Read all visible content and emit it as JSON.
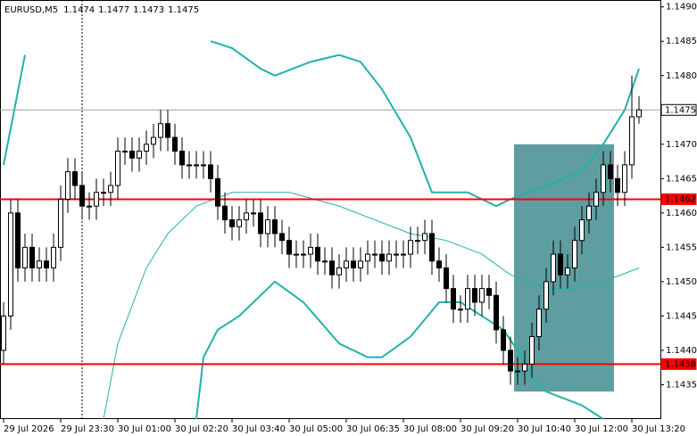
{
  "chart_data": {
    "type": "candlestick",
    "symbol": "EURUSD,M5",
    "open": [
      1.144,
      1.1445,
      1.146,
      1.1452,
      1.1455,
      1.1452,
      1.1453,
      1.1452,
      1.1455,
      1.1462,
      1.1466,
      1.1464,
      1.1461,
      1.1461,
      1.1463,
      1.1463,
      1.1464,
      1.1469,
      1.1469,
      1.1468,
      1.1469,
      1.147,
      1.1471,
      1.1473,
      1.1471,
      1.1469,
      1.1467,
      1.1467,
      1.1467,
      1.1467,
      1.1465,
      1.1461,
      1.1459,
      1.1458,
      1.1459,
      1.146,
      1.146,
      1.1457,
      1.1459,
      1.1457,
      1.1456,
      1.1454,
      1.1454,
      1.1454,
      1.1455,
      1.1453,
      1.1453,
      1.1451,
      1.1452,
      1.1453,
      1.1452,
      1.1453,
      1.1454,
      1.1454,
      1.1453,
      1.1454,
      1.1454,
      1.1454,
      1.1456,
      1.1456,
      1.1457,
      1.1453,
      1.1452,
      1.1449,
      1.1446,
      1.1446,
      1.1449,
      1.1447,
      1.1449,
      1.1448,
      1.1443,
      1.144,
      1.1437,
      1.1437,
      1.1438,
      1.1442,
      1.1446,
      1.145,
      1.1454,
      1.1451,
      1.1452,
      1.1456,
      1.1459,
      1.1461,
      1.1463,
      1.1467,
      1.1465,
      1.1463,
      1.1467,
      1.1474
    ],
    "high": [
      1.1447,
      1.1462,
      1.1462,
      1.1457,
      1.1457,
      1.1455,
      1.1455,
      1.1457,
      1.1464,
      1.1468,
      1.1468,
      1.1466,
      1.1463,
      1.1465,
      1.1465,
      1.1466,
      1.1471,
      1.1471,
      1.1471,
      1.1471,
      1.1472,
      1.1473,
      1.1475,
      1.1475,
      1.1473,
      1.1471,
      1.1469,
      1.1469,
      1.1469,
      1.1469,
      1.1467,
      1.1463,
      1.1461,
      1.1461,
      1.1462,
      1.1462,
      1.1462,
      1.1461,
      1.1461,
      1.1459,
      1.1458,
      1.1456,
      1.1456,
      1.1457,
      1.1457,
      1.1455,
      1.1455,
      1.1454,
      1.1455,
      1.1455,
      1.1455,
      1.1456,
      1.1456,
      1.1456,
      1.1456,
      1.1456,
      1.1456,
      1.1458,
      1.1458,
      1.1459,
      1.1459,
      1.1455,
      1.1454,
      1.1451,
      1.1448,
      1.1451,
      1.1451,
      1.1451,
      1.1451,
      1.145,
      1.1445,
      1.1442,
      1.1439,
      1.144,
      1.1444,
      1.1448,
      1.1452,
      1.1456,
      1.1456,
      1.1454,
      1.1458,
      1.1461,
      1.1463,
      1.1465,
      1.1469,
      1.1469,
      1.1467,
      1.1469,
      1.148,
      1.1477
    ],
    "low": [
      1.1438,
      1.1443,
      1.145,
      1.145,
      1.145,
      1.145,
      1.145,
      1.145,
      1.1453,
      1.146,
      1.1462,
      1.1459,
      1.1459,
      1.1459,
      1.1461,
      1.1461,
      1.1462,
      1.1467,
      1.1466,
      1.1466,
      1.1467,
      1.1468,
      1.1469,
      1.1469,
      1.1467,
      1.1465,
      1.1465,
      1.1465,
      1.1465,
      1.1463,
      1.1459,
      1.1457,
      1.1456,
      1.1456,
      1.1457,
      1.1458,
      1.1455,
      1.1455,
      1.1455,
      1.1454,
      1.1452,
      1.1452,
      1.1452,
      1.1452,
      1.1451,
      1.1451,
      1.1449,
      1.1449,
      1.145,
      1.145,
      1.145,
      1.1451,
      1.1452,
      1.1451,
      1.1451,
      1.1452,
      1.1452,
      1.1452,
      1.1454,
      1.1454,
      1.1451,
      1.145,
      1.1447,
      1.1444,
      1.1444,
      1.1444,
      1.1445,
      1.1445,
      1.1446,
      1.1441,
      1.1438,
      1.1435,
      1.1435,
      1.1435,
      1.1436,
      1.144,
      1.1444,
      1.1448,
      1.1449,
      1.1449,
      1.145,
      1.1454,
      1.1457,
      1.1459,
      1.1461,
      1.1463,
      1.1461,
      1.1461,
      1.1465,
      1.1473
    ],
    "close": [
      1.1445,
      1.146,
      1.1452,
      1.1455,
      1.1452,
      1.1453,
      1.1452,
      1.1455,
      1.1462,
      1.1466,
      1.1464,
      1.1461,
      1.1461,
      1.1463,
      1.1463,
      1.1464,
      1.1469,
      1.1469,
      1.1468,
      1.1469,
      1.147,
      1.1471,
      1.1473,
      1.1471,
      1.1469,
      1.1467,
      1.1467,
      1.1467,
      1.1467,
      1.1465,
      1.1461,
      1.1459,
      1.1458,
      1.1459,
      1.146,
      1.146,
      1.1457,
      1.1459,
      1.1457,
      1.1456,
      1.1454,
      1.1454,
      1.1454,
      1.1455,
      1.1453,
      1.1453,
      1.1451,
      1.1452,
      1.1453,
      1.1452,
      1.1453,
      1.1454,
      1.1454,
      1.1453,
      1.1454,
      1.1454,
      1.1454,
      1.1456,
      1.1456,
      1.1457,
      1.1453,
      1.1452,
      1.1449,
      1.1446,
      1.1446,
      1.1449,
      1.1447,
      1.1449,
      1.1448,
      1.1443,
      1.144,
      1.1437,
      1.1437,
      1.1438,
      1.1442,
      1.1446,
      1.145,
      1.1454,
      1.1451,
      1.1452,
      1.1456,
      1.1459,
      1.1461,
      1.1463,
      1.1467,
      1.1465,
      1.1463,
      1.1467,
      1.1474,
      1.1475
    ],
    "xticks": [
      {
        "value": 0,
        "label": "29 Jul 2026"
      },
      {
        "value": 8,
        "label": "29 Jul 23:30"
      },
      {
        "value": 16,
        "label": "30 Jul 01:00"
      },
      {
        "value": 24,
        "label": "30 Jul 02:20"
      },
      {
        "value": 32,
        "label": "30 Jul 03:40"
      },
      {
        "value": 40,
        "label": "30 Jul 05:00"
      },
      {
        "value": 48,
        "label": "30 Jul 06:35"
      },
      {
        "value": 56,
        "label": "30 Jul 08:00"
      },
      {
        "value": 64,
        "label": "30 Jul 09:20"
      },
      {
        "value": 72,
        "label": "30 Jul 10:40"
      },
      {
        "value": 80,
        "label": "30 Jul 12:00"
      },
      {
        "value": 88,
        "label": "30 Jul 13:20"
      }
    ],
    "ylim": [
      1.143,
      1.1491
    ],
    "yticks": [
      {
        "value": 1.149,
        "label": "1.1490"
      },
      1.1485,
      {
        "value": 1.148,
        "label": "1.1480"
      },
      {
        "value": 1.147,
        "label": "1.1470"
      },
      1.1465,
      {
        "value": 1.146,
        "label": "1.1460"
      },
      1.1455,
      {
        "value": 1.145,
        "label": "1.1450"
      },
      1.1445,
      {
        "value": 1.144,
        "label": "1.1440"
      },
      1.1435
    ],
    "bands": [
      {
        "color": "#20b2aa",
        "width": 2,
        "x": [
          0,
          3,
          4,
          29,
          32,
          36,
          38,
          43,
          47,
          50,
          53,
          57,
          60,
          65,
          69,
          71,
          76,
          81,
          84,
          87,
          89
        ],
        "values": [
          1.1467,
          1.1483,
          null,
          1.1485,
          1.1484,
          1.1481,
          1.148,
          1.1482,
          1.1483,
          1.1482,
          1.1478,
          1.1471,
          1.1463,
          1.1463,
          1.1461,
          1.1462,
          1.1464,
          1.1466,
          1.147,
          1.1475,
          1.1481
        ]
      },
      {
        "color": "#20b2aa",
        "width": 1,
        "x": [
          14,
          16,
          20,
          23,
          27,
          32,
          40,
          47,
          52,
          57,
          62,
          67,
          71,
          76,
          80,
          84,
          89
        ],
        "values": [
          1.143,
          1.1441,
          1.1452,
          1.1457,
          1.1461,
          1.1463,
          1.1463,
          1.1461,
          1.1459,
          1.1457,
          1.1456,
          1.1454,
          1.1451,
          1.1449,
          1.1449,
          1.145,
          1.1452
        ]
      },
      {
        "color": "#20b2aa",
        "width": 2,
        "x": [
          27,
          28,
          30,
          33,
          36,
          38,
          42,
          47,
          51,
          53,
          57,
          61,
          64,
          67,
          70,
          72,
          74,
          76,
          81,
          84
        ],
        "values": [
          1.143,
          1.1439,
          1.1443,
          1.1445,
          1.1448,
          1.145,
          1.1447,
          1.1441,
          1.1439,
          1.1439,
          1.1442,
          1.1447,
          1.1447,
          1.1445,
          1.1443,
          1.144,
          1.1436,
          1.1434,
          1.1432,
          1.143
        ]
      }
    ],
    "levels": [
      {
        "value": 1.1462,
        "color": "#ff0000"
      },
      {
        "value": 1.1438,
        "color": "#ff0000"
      }
    ],
    "zone": {
      "start": 72,
      "end": 86,
      "top": 1.147,
      "bottom": 1.1434,
      "color": "#5f9ea0"
    }
  }
}
